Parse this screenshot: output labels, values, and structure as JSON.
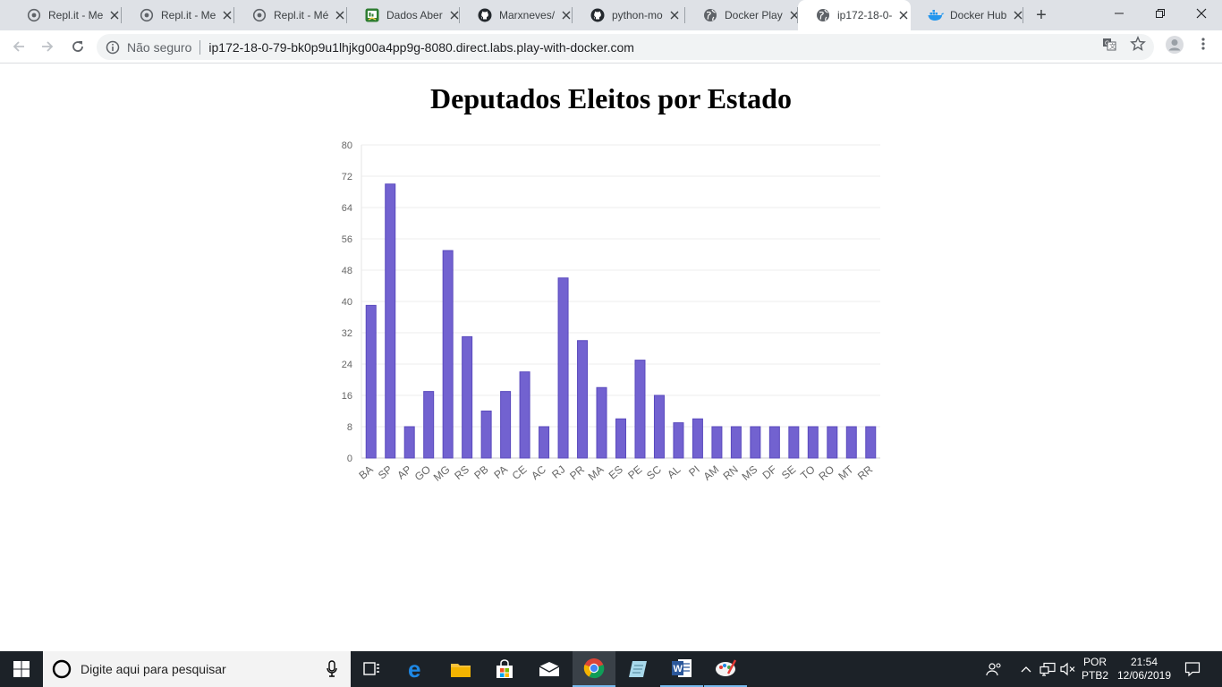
{
  "browser": {
    "tabs": [
      {
        "title": "Repl.it - Me",
        "icon": "replit-icon",
        "active": false
      },
      {
        "title": "Repl.it - Me",
        "icon": "replit-icon",
        "active": false
      },
      {
        "title": "Repl.it - Mé",
        "icon": "replit-icon",
        "active": false
      },
      {
        "title": "Dados Aber",
        "icon": "dados-abertos-icon",
        "active": false
      },
      {
        "title": "Marxneves/",
        "icon": "github-icon",
        "active": false
      },
      {
        "title": "python-mo",
        "icon": "github-icon",
        "active": false
      },
      {
        "title": "Docker Play",
        "icon": "globe-icon",
        "active": false
      },
      {
        "title": "ip172-18-0-",
        "icon": "globe-icon",
        "active": true
      },
      {
        "title": "Docker Hub",
        "icon": "docker-icon",
        "active": false
      }
    ],
    "security_label": "Não seguro",
    "url": "ip172-18-0-79-bk0p9u1lhjkg00a4pp9g-8080.direct.labs.play-with-docker.com"
  },
  "page": {
    "title": "Deputados Eleitos por Estado"
  },
  "chart_data": {
    "type": "bar",
    "title": "Deputados Eleitos por Estado",
    "xlabel": "",
    "ylabel": "",
    "categories": [
      "BA",
      "SP",
      "AP",
      "GO",
      "MG",
      "RS",
      "PB",
      "PA",
      "CE",
      "AC",
      "RJ",
      "PR",
      "MA",
      "ES",
      "PE",
      "SC",
      "AL",
      "PI",
      "AM",
      "RN",
      "MS",
      "DF",
      "SE",
      "TO",
      "RO",
      "MT",
      "RR"
    ],
    "values": [
      39,
      70,
      8,
      17,
      53,
      31,
      12,
      17,
      22,
      8,
      46,
      30,
      18,
      10,
      25,
      16,
      9,
      10,
      8,
      8,
      8,
      8,
      8,
      8,
      8,
      8,
      8
    ],
    "yticks": [
      "0",
      "8",
      "16",
      "24",
      "32",
      "40",
      "48",
      "56",
      "64",
      "72",
      "80"
    ],
    "ylim": [
      0,
      80
    ],
    "grid": true,
    "bar_color": "#6a5acd"
  },
  "taskbar": {
    "search_placeholder": "Digite aqui para pesquisar",
    "language_top": "POR",
    "language_bottom": "PTB2",
    "time": "21:54",
    "date": "12/06/2019"
  }
}
